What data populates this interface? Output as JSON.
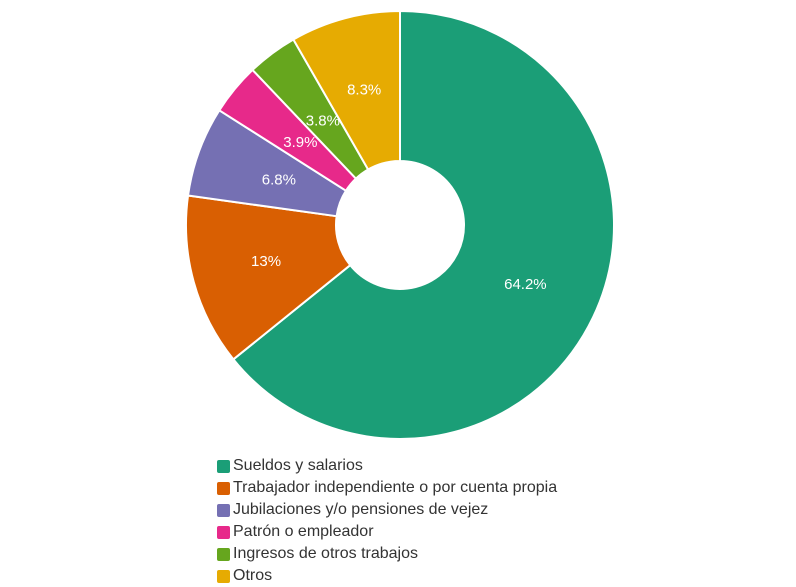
{
  "chart_data": {
    "type": "pie",
    "donut": true,
    "categories": [
      "Sueldos y salarios",
      "Trabajador independiente o por cuenta propia",
      "Jubilaciones y/o pensiones de vejez",
      "Patrón o empleador",
      "Ingresos de otros trabajos",
      "Otros"
    ],
    "values": [
      64.2,
      13,
      6.8,
      3.9,
      3.8,
      8.3
    ],
    "labels": [
      "64.2%",
      "13%",
      "6.8%",
      "3.9%",
      "3.8%",
      "8.3%"
    ],
    "colors": [
      "#1b9e77",
      "#d95f02",
      "#7570b3",
      "#e7298a",
      "#66a61e",
      "#e6ab02"
    ],
    "legend_position": "bottom"
  }
}
